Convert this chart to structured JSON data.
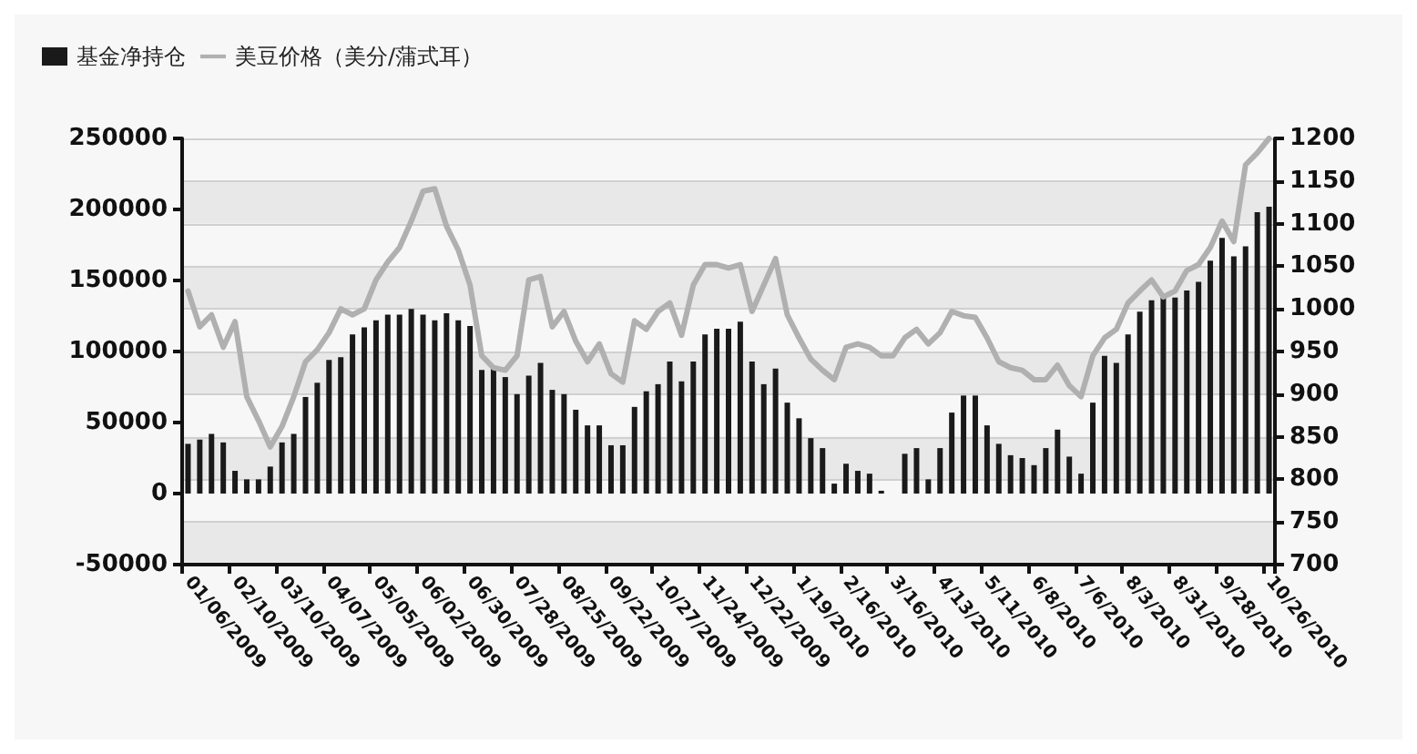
{
  "chart_data": {
    "type": "bar",
    "categories": [
      "01/06/2009",
      null,
      null,
      null,
      "02/10/2009",
      null,
      null,
      null,
      "03/10/2009",
      null,
      null,
      null,
      "04/07/2009",
      null,
      null,
      null,
      "05/05/2009",
      null,
      null,
      null,
      "06/02/2009",
      null,
      null,
      null,
      "06/30/2009",
      null,
      null,
      null,
      "07/28/2009",
      null,
      null,
      null,
      "08/25/2009",
      null,
      null,
      null,
      "09/22/2009",
      null,
      null,
      null,
      "10/27/2009",
      null,
      null,
      null,
      "11/24/2009",
      null,
      null,
      null,
      "12/22/2009",
      null,
      null,
      null,
      "1/19/2010",
      null,
      null,
      null,
      "2/16/2010",
      null,
      null,
      null,
      "3/16/2010",
      null,
      null,
      null,
      "4/13/2010",
      null,
      null,
      null,
      "5/11/2010",
      null,
      null,
      null,
      "6/8/2010",
      null,
      null,
      null,
      "7/6/2010",
      null,
      null,
      null,
      "8/3/2010",
      null,
      null,
      null,
      "8/31/2010",
      null,
      null,
      null,
      "9/28/2010",
      null,
      null,
      null,
      "10/26/2010"
    ],
    "series": [
      {
        "name": "基金净持仓",
        "color": "#1a1a1a",
        "values": [
          35000,
          38000,
          42000,
          36000,
          16000,
          10000,
          10000,
          19000,
          36000,
          42000,
          68000,
          78000,
          94000,
          96000,
          112000,
          117000,
          122000,
          126000,
          126000,
          130000,
          126000,
          122000,
          127000,
          122000,
          118000,
          87000,
          89000,
          82000,
          70000,
          83000,
          92000,
          73000,
          70000,
          59000,
          48000,
          48000,
          34000,
          34000,
          61000,
          72000,
          77000,
          93000,
          79000,
          93000,
          112000,
          116000,
          116000,
          121000,
          93000,
          77000,
          88000,
          64000,
          53000,
          39000,
          32000,
          7000,
          21000,
          16000,
          14000,
          2000,
          0,
          28000,
          32000,
          10000,
          32000,
          57000,
          69000,
          69000,
          48000,
          35000,
          27000,
          25000,
          20000,
          32000,
          45000,
          26000,
          14000,
          64000,
          97000,
          92000,
          112000,
          128000,
          136000,
          138000,
          138000,
          143000,
          149000,
          164000,
          180000,
          167000,
          174000,
          198000,
          202000
        ]
      },
      {
        "name": "美豆价格（美分/蒲式耳）",
        "type": "line",
        "axis": "y2",
        "color": "#b0b0b0",
        "values": [
          1021,
          979,
          993,
          955,
          985,
          897,
          869,
          838,
          862,
          897,
          938,
          952,
          972,
          1000,
          993,
          1000,
          1034,
          1055,
          1072,
          1103,
          1138,
          1141,
          1097,
          1069,
          1028,
          945,
          931,
          928,
          945,
          1034,
          1038,
          979,
          997,
          962,
          938,
          959,
          924,
          914,
          986,
          976,
          997,
          1007,
          969,
          1028,
          1052,
          1052,
          1048,
          1052,
          997,
          1028,
          1059,
          993,
          966,
          941,
          928,
          917,
          955,
          959,
          955,
          945,
          945,
          966,
          976,
          959,
          972,
          997,
          992,
          990,
          966,
          938,
          931,
          928,
          917,
          917,
          934,
          910,
          897,
          945,
          966,
          976,
          1007,
          1021,
          1034,
          1014,
          1021,
          1045,
          1052,
          1072,
          1103,
          1079,
          1169,
          1183,
          1200
        ]
      }
    ],
    "ylim": [
      -50000,
      250000
    ],
    "yticks": [
      -50000,
      0,
      50000,
      100000,
      150000,
      200000,
      250000
    ],
    "y2lim": [
      700,
      1200
    ],
    "y2ticks": [
      700,
      750,
      800,
      850,
      900,
      950,
      1000,
      1050,
      1100,
      1150,
      1200
    ],
    "grid": "y",
    "legend": "top left",
    "marker": "none",
    "line_style": "solid"
  }
}
